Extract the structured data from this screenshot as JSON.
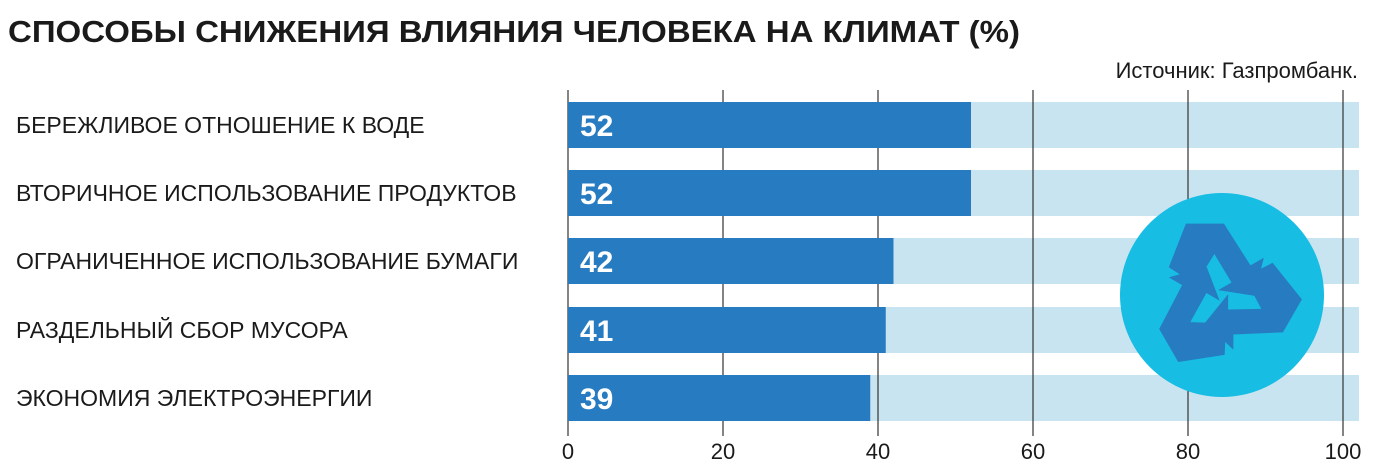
{
  "chart_data": {
    "type": "bar",
    "orientation": "horizontal",
    "title": "СПОСОБЫ СНИЖЕНИЯ ВЛИЯНИЯ ЧЕЛОВЕКА НА КЛИМАТ (%)",
    "source": "Источник: Газпромбанк.",
    "categories": [
      "БЕРЕЖЛИВОЕ ОТНОШЕНИЕ К ВОДЕ",
      "ВТОРИЧНОЕ ИСПОЛЬЗОВАНИЕ ПРОДУКТОВ",
      "ОГРАНИЧЕННОЕ ИСПОЛЬЗОВАНИЕ БУМАГИ",
      "РАЗДЕЛЬНЫЙ СБОР МУСОРА",
      "ЭКОНОМИЯ ЭЛЕКТРОЭНЕРГИИ"
    ],
    "values": [
      52,
      52,
      42,
      41,
      39
    ],
    "data_labels": [
      "52",
      "52",
      "42",
      "41",
      "39"
    ],
    "xlim": [
      0,
      100
    ],
    "xticks": [
      "0",
      "20",
      "40",
      "60",
      "80",
      "100"
    ],
    "grid": true,
    "colors": {
      "bar": "#277bc0",
      "track": "#c9e4f1",
      "icon_circle": "#17bde3",
      "icon_arrows": "#277bc0",
      "grid": "#333333"
    },
    "icon": "recycle-icon"
  }
}
